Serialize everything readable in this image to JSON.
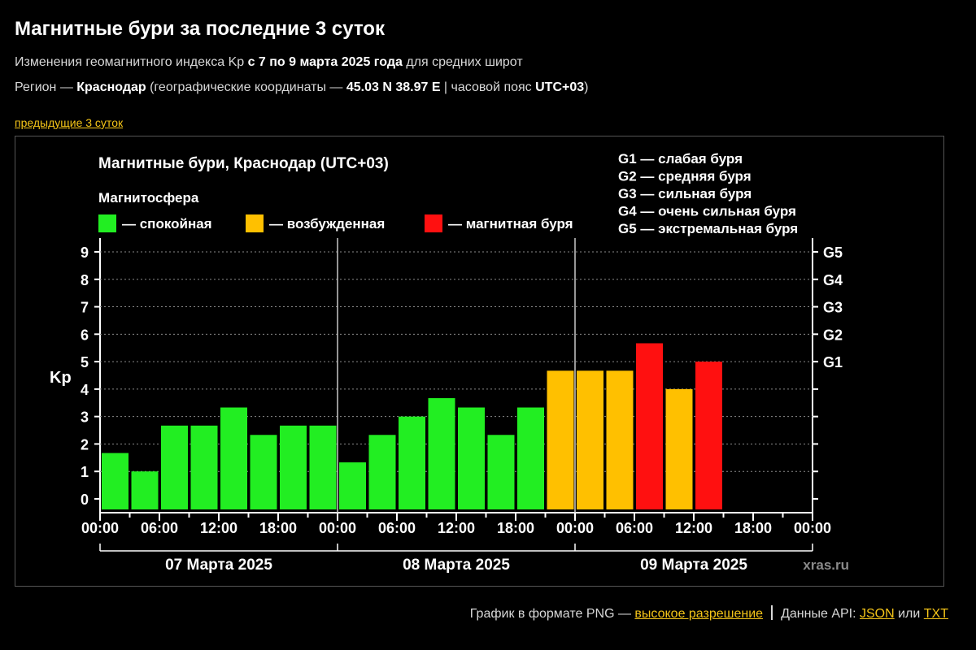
{
  "page": {
    "title": "Магнитные бури за последние 3 суток",
    "subtitle1_prefix": "Изменения геомагнитного индекса Kp ",
    "subtitle1_bold": "с 7 по 9 марта 2025 года",
    "subtitle1_suffix": " для средних широт",
    "subtitle2_prefix": "Регион — ",
    "subtitle2_region": "Краснодар",
    "subtitle2_mid": " (географические координаты — ",
    "subtitle2_coords": "45.03 N 38.97 E",
    "subtitle2_tz_prefix": " | часовой пояс ",
    "subtitle2_tz": "UTC+03",
    "subtitle2_suffix": ")",
    "prev_link": "предыдущие 3 суток",
    "footer_png_prefix": "График в формате PNG — ",
    "footer_hi_res": "высокое разрешение",
    "footer_api_prefix": "Данные API: ",
    "footer_json": "JSON",
    "footer_or": " или ",
    "footer_txt": "TXT"
  },
  "chart_data": {
    "type": "bar",
    "title": "Магнитные бури, Краснодар (UTC+03)",
    "legend_title": "Магнитосфера",
    "legend": [
      {
        "label": "— спокойная",
        "color": "#22ee22"
      },
      {
        "label": "— возбужденная",
        "color": "#ffc000"
      },
      {
        "label": "— магнитная буря",
        "color": "#ff1010"
      }
    ],
    "g_scale_legend": [
      "G1 — слабая буря",
      "G2 — средняя буря",
      "G3 — сильная буря",
      "G4 — очень сильная буря",
      "G5 — экстремальная буря"
    ],
    "ylabel": "Kp",
    "ylim": [
      0,
      9
    ],
    "yticks": [
      "0",
      "1",
      "2",
      "3",
      "4",
      "5",
      "6",
      "7",
      "8",
      "9"
    ],
    "g_ticks": [
      {
        "label": "G1",
        "value": 5
      },
      {
        "label": "G2",
        "value": 6
      },
      {
        "label": "G3",
        "value": 7
      },
      {
        "label": "G4",
        "value": 8
      },
      {
        "label": "G5",
        "value": 9
      }
    ],
    "xticks": [
      "00:00",
      "06:00",
      "12:00",
      "18:00",
      "00:00",
      "06:00",
      "12:00",
      "18:00",
      "00:00",
      "06:00",
      "12:00",
      "18:00",
      "00:00"
    ],
    "days": [
      "07 Марта 2025",
      "08 Марта 2025",
      "09 Марта 2025"
    ],
    "interval_hours": 3,
    "values": [
      1.67,
      1.0,
      2.67,
      2.67,
      3.33,
      2.33,
      2.67,
      2.67,
      1.33,
      2.33,
      3.0,
      3.67,
      3.33,
      2.33,
      3.33,
      4.67,
      4.67,
      4.67,
      5.67,
      4.0,
      5.0
    ],
    "levels": [
      "quiet",
      "quiet",
      "quiet",
      "quiet",
      "quiet",
      "quiet",
      "quiet",
      "quiet",
      "quiet",
      "quiet",
      "quiet",
      "quiet",
      "quiet",
      "quiet",
      "quiet",
      "active",
      "active",
      "active",
      "storm",
      "active",
      "storm"
    ],
    "level_colors": {
      "quiet": "#22ee22",
      "active": "#ffc000",
      "storm": "#ff1010"
    },
    "grid": true,
    "watermark": "xras.ru"
  }
}
